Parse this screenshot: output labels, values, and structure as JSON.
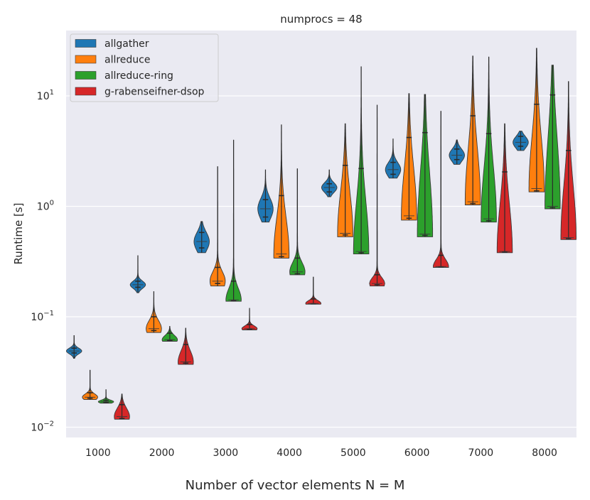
{
  "chart_data": {
    "type": "violin",
    "title": "numprocs = 48",
    "xlabel": "Number of vector elements N = M",
    "ylabel": "Runtime [s]",
    "yscale": "log",
    "ylim": [
      0.008,
      40
    ],
    "grid": true,
    "legend_position": "top-left",
    "categories": [
      "1000",
      "2000",
      "3000",
      "4000",
      "5000",
      "6000",
      "7000",
      "8000"
    ],
    "y_ticks": [
      {
        "value": 0.01,
        "base": "10",
        "exp": "−2"
      },
      {
        "value": 0.1,
        "base": "10",
        "exp": "−1"
      },
      {
        "value": 1,
        "base": "10",
        "exp": "0"
      },
      {
        "value": 10,
        "base": "10",
        "exp": "1"
      }
    ],
    "series": [
      {
        "name": "allgather",
        "color": "#1f77b4",
        "values": [
          {
            "min": 0.042,
            "q1": 0.047,
            "median": 0.049,
            "q3": 0.052,
            "max": 0.068
          },
          {
            "min": 0.165,
            "q1": 0.185,
            "median": 0.195,
            "q3": 0.21,
            "max": 0.36
          },
          {
            "min": 0.38,
            "q1": 0.42,
            "median": 0.48,
            "q3": 0.58,
            "max": 0.73
          },
          {
            "min": 0.72,
            "q1": 0.8,
            "median": 0.95,
            "q3": 1.15,
            "max": 2.15
          },
          {
            "min": 1.22,
            "q1": 1.35,
            "median": 1.48,
            "q3": 1.6,
            "max": 2.15
          },
          {
            "min": 1.8,
            "q1": 1.95,
            "median": 2.15,
            "q3": 2.5,
            "max": 4.1
          },
          {
            "min": 2.4,
            "q1": 2.65,
            "median": 2.9,
            "q3": 3.3,
            "max": 4.0
          },
          {
            "min": 3.2,
            "q1": 3.5,
            "median": 3.8,
            "q3": 4.3,
            "max": 4.8
          }
        ]
      },
      {
        "name": "allreduce",
        "color": "#ff7f0e",
        "values": [
          {
            "min": 0.0178,
            "q1": 0.0183,
            "median": 0.0187,
            "q3": 0.0205,
            "max": 0.033
          },
          {
            "min": 0.072,
            "q1": 0.075,
            "median": 0.078,
            "q3": 0.1,
            "max": 0.17
          },
          {
            "min": 0.19,
            "q1": 0.2,
            "median": 0.21,
            "q3": 0.28,
            "max": 2.3
          },
          {
            "min": 0.34,
            "q1": 0.35,
            "median": 0.37,
            "q3": 1.25,
            "max": 5.5
          },
          {
            "min": 0.53,
            "q1": 0.55,
            "median": 0.57,
            "q3": 2.35,
            "max": 5.6
          },
          {
            "min": 0.75,
            "q1": 0.78,
            "median": 0.82,
            "q3": 4.2,
            "max": 10.5
          },
          {
            "min": 1.03,
            "q1": 1.06,
            "median": 1.1,
            "q3": 6.6,
            "max": 23
          },
          {
            "min": 1.35,
            "q1": 1.38,
            "median": 1.45,
            "q3": 8.4,
            "max": 27
          }
        ]
      },
      {
        "name": "allreduce-ring",
        "color": "#2ca02c",
        "values": [
          {
            "min": 0.0165,
            "q1": 0.0167,
            "median": 0.017,
            "q3": 0.0175,
            "max": 0.022
          },
          {
            "min": 0.06,
            "q1": 0.061,
            "median": 0.062,
            "q3": 0.071,
            "max": 0.082
          },
          {
            "min": 0.138,
            "q1": 0.14,
            "median": 0.142,
            "q3": 0.21,
            "max": 4.0
          },
          {
            "min": 0.24,
            "q1": 0.245,
            "median": 0.255,
            "q3": 0.34,
            "max": 2.2
          },
          {
            "min": 0.37,
            "q1": 0.38,
            "median": 0.39,
            "q3": 2.2,
            "max": 18.5
          },
          {
            "min": 0.53,
            "q1": 0.545,
            "median": 0.56,
            "q3": 4.65,
            "max": 10.3
          },
          {
            "min": 0.72,
            "q1": 0.74,
            "median": 0.77,
            "q3": 4.55,
            "max": 22.5
          },
          {
            "min": 0.95,
            "q1": 0.97,
            "median": 1.0,
            "q3": 10.2,
            "max": 19
          }
        ]
      },
      {
        "name": "g-rabenseifner-dsop",
        "color": "#d62728",
        "values": [
          {
            "min": 0.0118,
            "q1": 0.012,
            "median": 0.0125,
            "q3": 0.016,
            "max": 0.02
          },
          {
            "min": 0.037,
            "q1": 0.038,
            "median": 0.039,
            "q3": 0.056,
            "max": 0.079
          },
          {
            "min": 0.076,
            "q1": 0.077,
            "median": 0.078,
            "q3": 0.085,
            "max": 0.12
          },
          {
            "min": 0.13,
            "q1": 0.131,
            "median": 0.132,
            "q3": 0.145,
            "max": 0.23
          },
          {
            "min": 0.19,
            "q1": 0.195,
            "median": 0.2,
            "q3": 0.24,
            "max": 8.3
          },
          {
            "min": 0.28,
            "q1": 0.282,
            "median": 0.285,
            "q3": 0.36,
            "max": 7.3
          },
          {
            "min": 0.38,
            "q1": 0.385,
            "median": 0.39,
            "q3": 2.05,
            "max": 5.6
          },
          {
            "min": 0.5,
            "q1": 0.51,
            "median": 0.52,
            "q3": 3.2,
            "max": 13.5
          }
        ]
      }
    ]
  }
}
